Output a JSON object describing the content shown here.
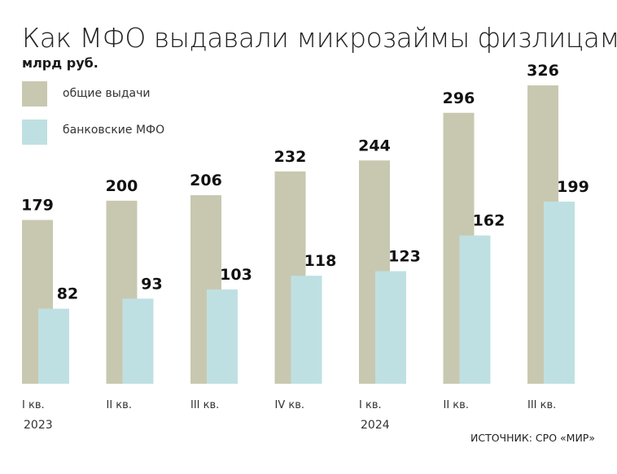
{
  "chart_data": {
    "type": "bar",
    "title": "Как МФО выдавали микрозаймы физлицам",
    "unit": "млрд руб.",
    "categories": [
      "I кв.",
      "II кв.",
      "III кв.",
      "IV кв.",
      "I кв.",
      "II кв.",
      "III кв."
    ],
    "years": [
      {
        "label": "2023",
        "index": 0
      },
      {
        "label": "2024",
        "index": 4
      }
    ],
    "series": [
      {
        "name": "общие выдачи",
        "color": "#c8c8b1",
        "values": [
          179,
          200,
          206,
          232,
          244,
          296,
          326
        ]
      },
      {
        "name": "банковские МФО",
        "color": "#bfe0e2",
        "values": [
          82,
          93,
          103,
          118,
          123,
          162,
          199
        ]
      }
    ],
    "legend": "top-left",
    "grid": false,
    "source": "ИСТОЧНИК: СРО «МИР»"
  }
}
